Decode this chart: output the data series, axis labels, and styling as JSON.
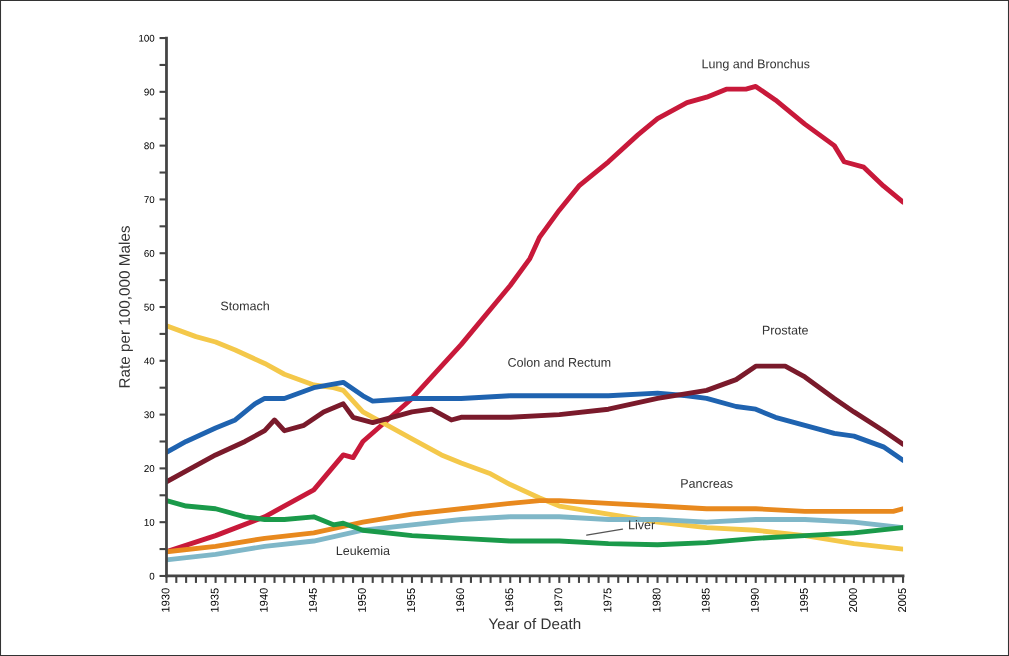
{
  "chart_data": {
    "type": "line",
    "xlabel": "Year of Death",
    "ylabel": "Rate per 100,000 Males",
    "xlim": [
      1930,
      2005
    ],
    "ylim": [
      0,
      100
    ],
    "xticks": [
      1930,
      {
        "value": 1931,
        "label": null
      },
      {
        "value": 1932,
        "label": null
      },
      {
        "value": 1933,
        "label": null
      },
      {
        "value": 1934,
        "label": null
      },
      1935,
      {
        "value": 1936,
        "label": null
      },
      {
        "value": 1937,
        "label": null
      },
      {
        "value": 1938,
        "label": null
      },
      {
        "value": 1939,
        "label": null
      },
      1940,
      {
        "value": 1941,
        "label": null
      },
      {
        "value": 1942,
        "label": null
      },
      {
        "value": 1943,
        "label": null
      },
      {
        "value": 1944,
        "label": null
      },
      1945,
      {
        "value": 1946,
        "label": null
      },
      {
        "value": 1947,
        "label": null
      },
      {
        "value": 1948,
        "label": null
      },
      {
        "value": 1949,
        "label": null
      },
      1950,
      {
        "value": 1951,
        "label": null
      },
      {
        "value": 1952,
        "label": null
      },
      {
        "value": 1953,
        "label": null
      },
      {
        "value": 1954,
        "label": null
      },
      1955,
      {
        "value": 1956,
        "label": null
      },
      {
        "value": 1957,
        "label": null
      },
      {
        "value": 1958,
        "label": null
      },
      {
        "value": 1959,
        "label": null
      },
      1960,
      {
        "value": 1961,
        "label": null
      },
      {
        "value": 1962,
        "label": null
      },
      {
        "value": 1963,
        "label": null
      },
      {
        "value": 1964,
        "label": null
      },
      1965,
      {
        "value": 1966,
        "label": null
      },
      {
        "value": 1967,
        "label": null
      },
      {
        "value": 1968,
        "label": null
      },
      {
        "value": 1969,
        "label": null
      },
      1970,
      {
        "value": 1971,
        "label": null
      },
      {
        "value": 1972,
        "label": null
      },
      {
        "value": 1973,
        "label": null
      },
      {
        "value": 1974,
        "label": null
      },
      1975,
      {
        "value": 1976,
        "label": null
      },
      {
        "value": 1977,
        "label": null
      },
      {
        "value": 1978,
        "label": null
      },
      {
        "value": 1979,
        "label": null
      },
      1980,
      {
        "value": 1981,
        "label": null
      },
      {
        "value": 1982,
        "label": null
      },
      {
        "value": 1983,
        "label": null
      },
      {
        "value": 1984,
        "label": null
      },
      1985,
      {
        "value": 1986,
        "label": null
      },
      {
        "value": 1987,
        "label": null
      },
      {
        "value": 1988,
        "label": null
      },
      {
        "value": 1989,
        "label": null
      },
      1990,
      {
        "value": 1991,
        "label": null
      },
      {
        "value": 1992,
        "label": null
      },
      {
        "value": 1993,
        "label": null
      },
      {
        "value": 1994,
        "label": null
      },
      1995,
      {
        "value": 1996,
        "label": null
      },
      {
        "value": 1997,
        "label": null
      },
      {
        "value": 1998,
        "label": null
      },
      {
        "value": 1999,
        "label": null
      },
      2000,
      {
        "value": 2001,
        "label": null
      },
      {
        "value": 2002,
        "label": null
      },
      {
        "value": 2003,
        "label": null
      },
      {
        "value": 2004,
        "label": null
      },
      2005
    ],
    "yticks": [
      0,
      {
        "value": 5,
        "label": null
      },
      10,
      {
        "value": 15,
        "label": null
      },
      20,
      {
        "value": 25,
        "label": null
      },
      30,
      {
        "value": 35,
        "label": null
      },
      40,
      {
        "value": 45,
        "label": null
      },
      50,
      {
        "value": 55,
        "label": null
      },
      60,
      {
        "value": 65,
        "label": null
      },
      70,
      {
        "value": 75,
        "label": null
      },
      80,
      {
        "value": 85,
        "label": null
      },
      90,
      {
        "value": 95,
        "label": null
      },
      100
    ],
    "grid": false,
    "legend": false,
    "marker": "none",
    "line_style": "solid",
    "series": [
      {
        "name": "Lung and Bronchus",
        "color": "#c8193a",
        "x": [
          1930,
          1935,
          1940,
          1945,
          1948,
          1949,
          1950,
          1955,
          1957,
          1960,
          1965,
          1967,
          1968,
          1970,
          1972,
          1975,
          1978,
          1980,
          1983,
          1985,
          1987,
          1989,
          1990,
          1992,
          1995,
          1998,
          1999,
          2001,
          2003,
          2005
        ],
        "values": [
          4.5,
          7.5,
          11,
          16,
          22.5,
          22,
          25,
          33,
          37,
          43,
          54,
          59,
          63,
          68,
          72.5,
          77,
          82,
          85,
          88,
          89,
          90.5,
          90.5,
          91,
          88.5,
          84,
          80,
          77,
          76,
          72.5,
          69.5
        ]
      },
      {
        "name": "Stomach",
        "color": "#f4c84a",
        "x": [
          1930,
          1933,
          1935,
          1937,
          1940,
          1942,
          1945,
          1947,
          1948,
          1950,
          1952,
          1955,
          1958,
          1960,
          1963,
          1965,
          1968,
          1970,
          1975,
          1980,
          1985,
          1990,
          1995,
          2000,
          2005
        ],
        "values": [
          46.5,
          44.5,
          43.5,
          42,
          39.5,
          37.5,
          35.5,
          35,
          34.5,
          30.5,
          28.5,
          25.5,
          22.5,
          21,
          19,
          17,
          14.5,
          13,
          11.5,
          10,
          9,
          8.5,
          7.5,
          6,
          5
        ]
      },
      {
        "name": "Colon and Rectum",
        "color": "#1f63b0",
        "x": [
          1930,
          1932,
          1935,
          1937,
          1939,
          1940,
          1942,
          1945,
          1948,
          1950,
          1951,
          1955,
          1960,
          1965,
          1970,
          1975,
          1980,
          1983,
          1985,
          1988,
          1990,
          1992,
          1995,
          1998,
          2000,
          2003,
          2005
        ],
        "values": [
          23,
          25,
          27.5,
          29,
          32,
          33,
          33,
          35,
          36,
          33.5,
          32.5,
          33,
          33,
          33.5,
          33.5,
          33.5,
          34,
          33.5,
          33,
          31.5,
          31,
          29.5,
          28,
          26.5,
          26,
          24,
          21.5
        ]
      },
      {
        "name": "Prostate",
        "color": "#7a1a2b",
        "x": [
          1930,
          1933,
          1935,
          1938,
          1940,
          1941,
          1942,
          1944,
          1946,
          1948,
          1949,
          1951,
          1955,
          1957,
          1959,
          1960,
          1965,
          1970,
          1975,
          1980,
          1985,
          1988,
          1990,
          1993,
          1995,
          1998,
          2000,
          2003,
          2005
        ],
        "values": [
          17.5,
          20.5,
          22.5,
          25,
          27,
          29,
          27,
          28,
          30.5,
          32,
          29.5,
          28.5,
          30.5,
          31,
          29,
          29.5,
          29.5,
          30,
          31,
          33,
          34.5,
          36.5,
          39,
          39,
          37,
          33,
          30.5,
          27,
          24.5
        ]
      },
      {
        "name": "Pancreas",
        "color": "#e8891e",
        "x": [
          1930,
          1935,
          1940,
          1945,
          1950,
          1955,
          1960,
          1965,
          1968,
          1970,
          1975,
          1980,
          1985,
          1990,
          1995,
          2000,
          2004,
          2005
        ],
        "values": [
          4.5,
          5.5,
          7,
          8,
          10,
          11.5,
          12.5,
          13.5,
          14,
          14,
          13.5,
          13,
          12.5,
          12.5,
          12,
          12,
          12,
          12.5
        ]
      },
      {
        "name": "Liver",
        "color": "#7fb7c8",
        "x": [
          1930,
          1935,
          1940,
          1945,
          1950,
          1955,
          1960,
          1965,
          1970,
          1975,
          1980,
          1985,
          1990,
          1995,
          2000,
          2005
        ],
        "values": [
          3,
          4,
          5.5,
          6.5,
          8.5,
          9.5,
          10.5,
          11,
          11,
          10.5,
          10.5,
          10,
          10.5,
          10.5,
          10,
          9
        ]
      },
      {
        "name": "Leukemia",
        "color": "#1a9a4a",
        "x": [
          1930,
          1932,
          1935,
          1938,
          1940,
          1942,
          1945,
          1947,
          1948,
          1950,
          1955,
          1960,
          1965,
          1970,
          1975,
          1980,
          1985,
          1990,
          1995,
          2000,
          2005
        ],
        "values": [
          14,
          13,
          12.5,
          11,
          10.5,
          10.5,
          11,
          9.5,
          9.8,
          8.5,
          7.5,
          7,
          6.5,
          6.5,
          6,
          5.8,
          6.2,
          7,
          7.5,
          8,
          9
        ]
      }
    ]
  }
}
